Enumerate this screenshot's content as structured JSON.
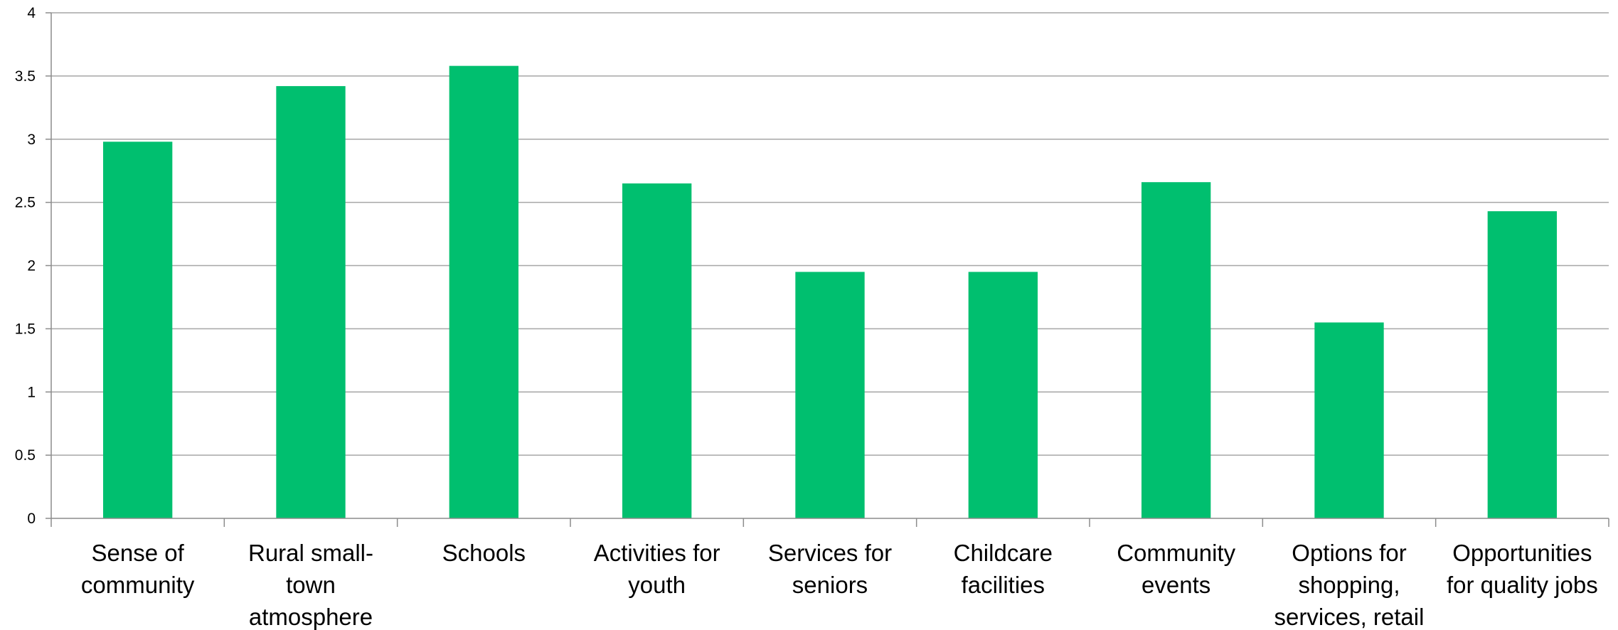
{
  "chart_data": {
    "type": "bar",
    "categories": [
      [
        "Sense of",
        "community"
      ],
      [
        "Rural small-",
        "town",
        "atmosphere"
      ],
      [
        "Schools"
      ],
      [
        "Activities for",
        "youth"
      ],
      [
        "Services for",
        "seniors"
      ],
      [
        "Childcare",
        "facilities"
      ],
      [
        "Community",
        "events"
      ],
      [
        "Options for",
        "shopping,",
        "services, retail"
      ],
      [
        "Opportunities",
        "for quality jobs"
      ]
    ],
    "values": [
      2.98,
      3.42,
      3.58,
      2.65,
      1.95,
      1.95,
      2.66,
      1.55,
      2.43
    ],
    "yticks": [
      "0",
      "0.5",
      "1",
      "1.5",
      "2",
      "2.5",
      "3",
      "3.5",
      "4"
    ],
    "ylim": [
      0,
      4
    ],
    "grid": true,
    "colors": {
      "bar": "#00bf6f",
      "grid": "#a6a6a6",
      "axis": "#8c8c8c"
    }
  }
}
